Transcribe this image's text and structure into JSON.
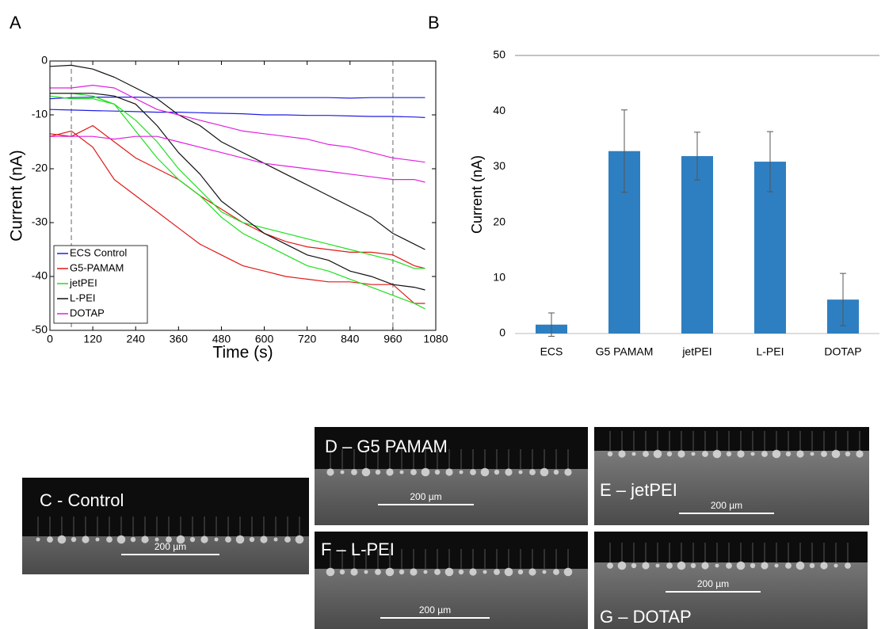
{
  "chart_data": [
    {
      "type": "line",
      "panel": "A",
      "xlabel": "Time (s)",
      "ylabel": "Current (nA)",
      "x": [
        0,
        60,
        120,
        180,
        240,
        300,
        360,
        420,
        480,
        540,
        600,
        660,
        720,
        780,
        840,
        900,
        960,
        1020,
        1050
      ],
      "xlim": [
        0,
        1080
      ],
      "xticks": [
        0,
        120,
        240,
        360,
        480,
        600,
        720,
        840,
        960,
        1080
      ],
      "ylim": [
        -50,
        0
      ],
      "yticks": [
        -50,
        -40,
        -30,
        -20,
        -10,
        0
      ],
      "vlines": [
        60,
        960
      ],
      "series": [
        {
          "name": "ECS Control",
          "color": "#1f1fe0",
          "values": [
            [
              -7,
              -6.8,
              -6.7,
              -6.7,
              -6.7,
              -6.8,
              -6.8,
              -6.8,
              -6.8,
              -6.8,
              -6.8,
              -6.8,
              -6.8,
              -6.8,
              -6.9,
              -6.8,
              -6.8,
              -6.8,
              -6.8
            ],
            [
              -9,
              -9.1,
              -9.2,
              -9.3,
              -9.4,
              -9.5,
              -9.5,
              -9.6,
              -9.7,
              -9.8,
              -10,
              -10,
              -10.1,
              -10.1,
              -10.2,
              -10.3,
              -10.3,
              -10.4,
              -10.5
            ]
          ]
        },
        {
          "name": "G5-PAMAM",
          "color": "#e01818",
          "values": [
            [
              -14,
              -13,
              -16,
              -22,
              -25,
              -28,
              -31,
              -34,
              -36,
              -38,
              -39,
              -40,
              -40.5,
              -41,
              -41,
              -41.5,
              -41.5,
              -45,
              -45
            ],
            [
              -13.5,
              -14,
              -12,
              -15,
              -18,
              -20,
              -22,
              -25,
              -27.5,
              -30,
              -32,
              -33.5,
              -34.5,
              -35,
              -35.5,
              -35.5,
              -36,
              -38,
              -38.5
            ]
          ]
        },
        {
          "name": "jetPEI",
          "color": "#1ee01e",
          "values": [
            [
              -6,
              -6,
              -6.5,
              -8,
              -11,
              -15,
              -20,
              -24,
              -28,
              -30,
              -31,
              -32,
              -33,
              -34,
              -35,
              -36,
              -37,
              -38.5,
              -38.5
            ],
            [
              -6.5,
              -7,
              -7,
              -8,
              -13,
              -18,
              -22,
              -25,
              -29,
              -32,
              -34,
              -36,
              -38,
              -39,
              -40.5,
              -42,
              -43.5,
              -45,
              -46
            ]
          ]
        },
        {
          "name": "L-PEI",
          "color": "#111111",
          "values": [
            [
              -1,
              -0.8,
              -1.5,
              -3,
              -5,
              -7,
              -10,
              -12,
              -15,
              -17,
              -19,
              -21,
              -23,
              -25,
              -27,
              -29,
              -32,
              -34,
              -35
            ],
            [
              -6,
              -6,
              -6,
              -6.5,
              -8,
              -12,
              -17,
              -21,
              -26,
              -29,
              -32,
              -34,
              -36,
              -37,
              -39,
              -40,
              -41.5,
              -42,
              -42.5
            ]
          ]
        },
        {
          "name": "DOTAP",
          "color": "#e020e0",
          "values": [
            [
              -5,
              -5,
              -4.5,
              -5,
              -7,
              -9,
              -10,
              -11,
              -12,
              -13,
              -13.5,
              -14,
              -14.5,
              -15.5,
              -16,
              -17,
              -18,
              -18.5,
              -18.8
            ],
            [
              -14,
              -14,
              -14,
              -14.5,
              -14,
              -14,
              -15,
              -16,
              -17,
              -18,
              -19,
              -19.5,
              -20,
              -20.5,
              -21,
              -21.5,
              -22,
              -22,
              -22.5
            ]
          ]
        }
      ]
    },
    {
      "type": "bar",
      "panel": "B",
      "ylabel": "Current (nA)",
      "color": "#2e7fc1",
      "categories": [
        "ECS",
        "G5 PAMAM",
        "jetPEI",
        "L-PEI",
        "DOTAP"
      ],
      "values": [
        1.6,
        32.8,
        31.9,
        30.9,
        6.1
      ],
      "errors": [
        2.1,
        7.4,
        4.3,
        5.4,
        4.7
      ],
      "ylim": [
        0,
        50
      ],
      "yticks": [
        0,
        10,
        20,
        30,
        40,
        50
      ]
    }
  ],
  "micrographs": [
    {
      "label": "C - Control",
      "scale": "200 µm"
    },
    {
      "label": "D – G5 PAMAM",
      "scale": "200 µm"
    },
    {
      "label": "E – jetPEI",
      "scale": "200 µm"
    },
    {
      "label": "F – L-PEI",
      "scale": "200 µm"
    },
    {
      "label": "G – DOTAP",
      "scale": "200 µm"
    }
  ]
}
